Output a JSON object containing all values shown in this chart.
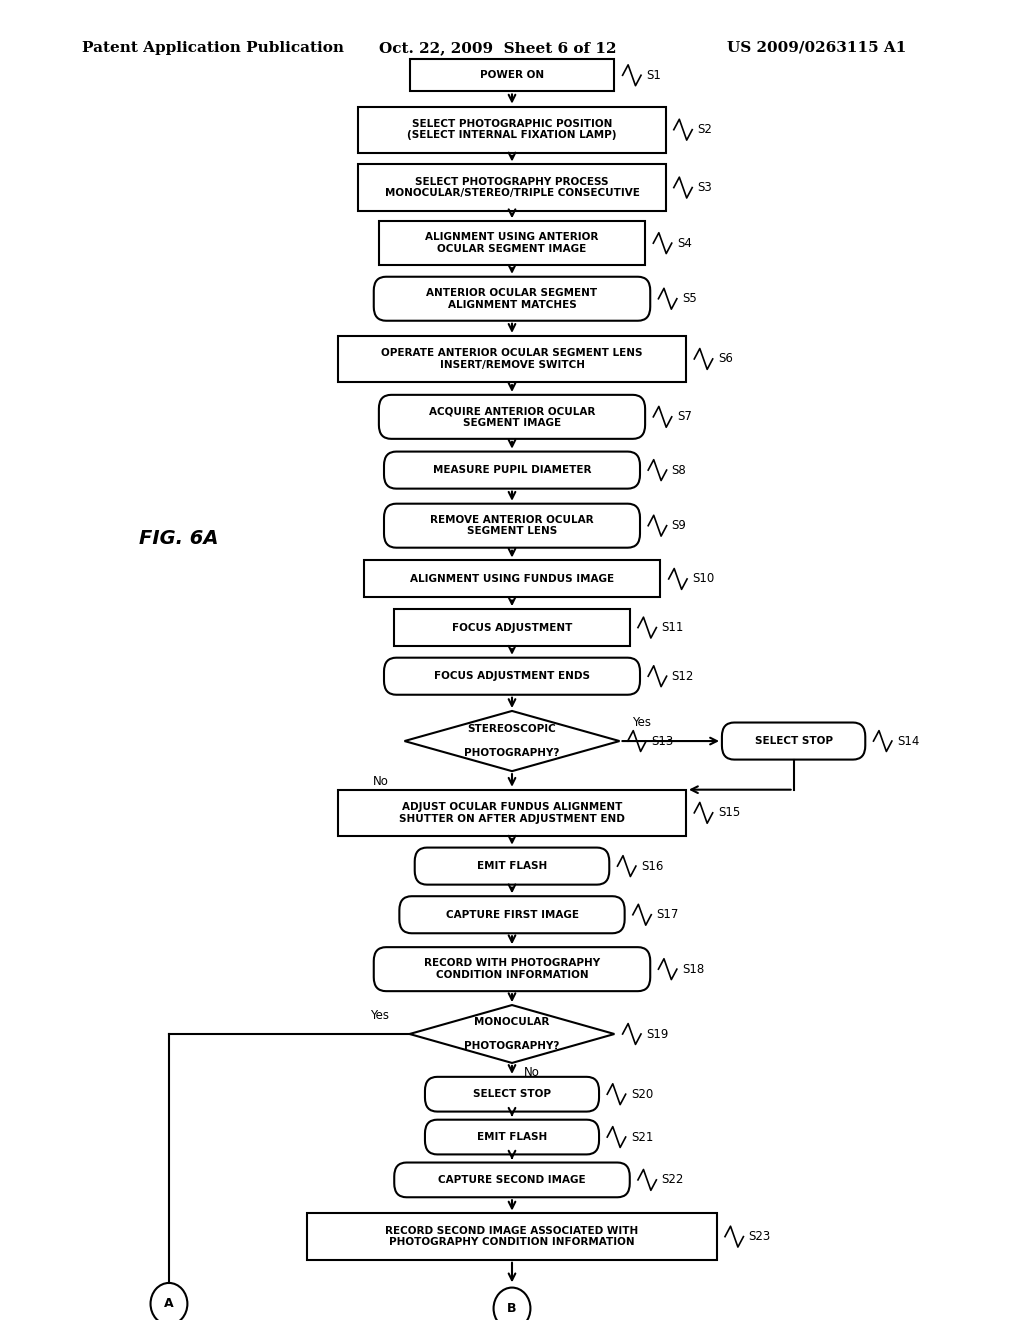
{
  "title_left": "Patent Application Publication",
  "title_mid": "Oct. 22, 2009  Sheet 6 of 12",
  "title_right": "US 2009/0263115 A1",
  "fig_label": "FIG. 6A",
  "bg_color": "#ffffff",
  "line_color": "#000000",
  "text_color": "#000000"
}
